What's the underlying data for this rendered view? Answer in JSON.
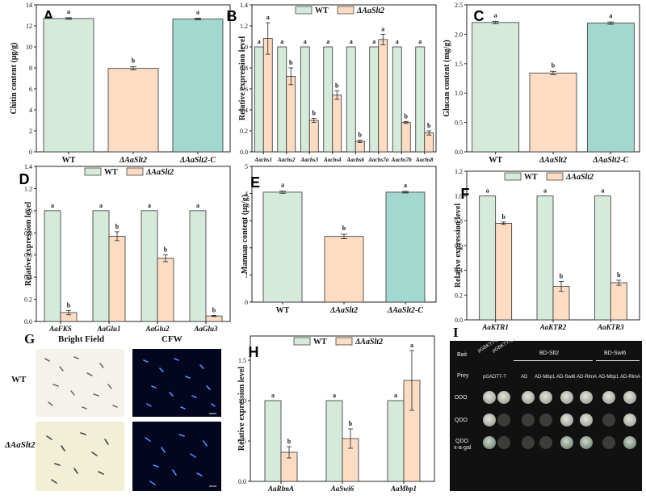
{
  "colors": {
    "wt": "#d6eadc",
    "mutant": "#fddcc4",
    "complement": "#a3d8cf",
    "stroke": "#333333"
  },
  "legend": {
    "wt": "WT",
    "mutant": "ΔAaSlt2"
  },
  "chart_data": [
    {
      "panel": "A",
      "type": "bar",
      "ylabel": "Chitin content (μg/g)",
      "ylim": [
        0,
        14
      ],
      "yticks": [
        0,
        2,
        4,
        6,
        8,
        10,
        12,
        14
      ],
      "categories": [
        "WT",
        "ΔAaSlt2",
        "ΔAaSlt2-C"
      ],
      "values": [
        12.7,
        7.95,
        12.65
      ],
      "errors": [
        0.08,
        0.15,
        0.08
      ],
      "labels": [
        "a",
        "b",
        "a"
      ],
      "legend": false
    },
    {
      "panel": "B",
      "type": "bar",
      "ylabel": "Relative expression level",
      "ylim": [
        0,
        1.4
      ],
      "yticks": [
        0.0,
        0.2,
        0.4,
        0.6,
        0.8,
        1.0,
        1.2,
        1.4
      ],
      "categories": [
        "Aachs1",
        "Aachs2",
        "Aachs3",
        "Aachs4",
        "Aachs6",
        "Aachs7a",
        "Aachs7b",
        "Aachs8"
      ],
      "series": [
        {
          "name": "WT",
          "values": [
            1,
            1,
            1,
            1,
            1,
            1,
            1,
            1
          ],
          "errors": [
            0,
            0,
            0,
            0,
            0,
            0,
            0,
            0
          ],
          "labels": [
            "a",
            "a",
            "a",
            "a",
            "a",
            "a",
            "a",
            "a"
          ]
        },
        {
          "name": "ΔAaSlt2",
          "values": [
            1.08,
            0.72,
            0.3,
            0.54,
            0.1,
            1.07,
            0.28,
            0.18
          ],
          "errors": [
            0.15,
            0.08,
            0.02,
            0.04,
            0.01,
            0.05,
            0.01,
            0.02
          ],
          "labels": [
            "a",
            "b",
            "b",
            "b",
            "b",
            "a",
            "b",
            "b"
          ]
        }
      ],
      "legend": true
    },
    {
      "panel": "C",
      "type": "bar",
      "ylabel": "Glucan content (mg/g)",
      "ylim": [
        0,
        2.5
      ],
      "yticks": [
        0.0,
        0.5,
        1.0,
        1.5,
        2.0,
        2.5
      ],
      "categories": [
        "WT",
        "ΔAaSlt2",
        "ΔAaSlt2-C"
      ],
      "values": [
        2.2,
        1.34,
        2.19
      ],
      "errors": [
        0.02,
        0.03,
        0.02
      ],
      "labels": [
        "a",
        "b",
        "a"
      ],
      "legend": false
    },
    {
      "panel": "D",
      "type": "bar",
      "ylabel": "Relative expression level",
      "ylim": [
        0,
        1.4
      ],
      "yticks": [
        0.0,
        0.2,
        0.4,
        0.6,
        0.8,
        1.0,
        1.2,
        1.4
      ],
      "categories": [
        "AaFKS",
        "AaGlu1",
        "AaGlu2",
        "AaGlu3"
      ],
      "series": [
        {
          "name": "WT",
          "values": [
            1,
            1,
            1,
            1
          ],
          "errors": [
            0,
            0,
            0,
            0
          ],
          "labels": [
            "a",
            "a",
            "a",
            "a"
          ]
        },
        {
          "name": "ΔAaSlt2",
          "values": [
            0.08,
            0.77,
            0.57,
            0.05
          ],
          "errors": [
            0.02,
            0.04,
            0.03,
            0.005
          ],
          "labels": [
            "b",
            "b",
            "b",
            "b"
          ]
        }
      ],
      "legend": true
    },
    {
      "panel": "E",
      "type": "bar",
      "ylabel": "Mannan content (μg/g)",
      "ylim": [
        0,
        5
      ],
      "yticks": [
        0,
        1,
        2,
        3,
        4,
        5
      ],
      "categories": [
        "WT",
        "ΔAaSlt2",
        "ΔAaSlt2-C"
      ],
      "values": [
        4.05,
        2.42,
        4.05
      ],
      "errors": [
        0.04,
        0.08,
        0.03
      ],
      "labels": [
        "a",
        "b",
        "a"
      ],
      "legend": false
    },
    {
      "panel": "F",
      "type": "bar",
      "ylabel": "Relative expression level",
      "ylim": [
        0,
        1.2
      ],
      "yticks": [
        0.0,
        0.2,
        0.4,
        0.6,
        0.8,
        1.0,
        1.2
      ],
      "categories": [
        "AaKTR1",
        "AaKTR2",
        "AaKTR3"
      ],
      "series": [
        {
          "name": "WT",
          "values": [
            1,
            1,
            1
          ],
          "errors": [
            0,
            0,
            0
          ],
          "labels": [
            "a",
            "a",
            "a"
          ]
        },
        {
          "name": "ΔAaSlt2",
          "values": [
            0.78,
            0.27,
            0.3
          ],
          "errors": [
            0.01,
            0.04,
            0.02
          ],
          "labels": [
            "b",
            "b",
            "b"
          ]
        }
      ],
      "legend": true
    },
    {
      "panel": "H",
      "type": "bar",
      "ylabel": "Relative expression level",
      "ylim": [
        0,
        1.8
      ],
      "yticks": [
        0.0,
        0.5,
        1.0,
        1.5
      ],
      "categories": [
        "AaRlmA",
        "AaSwi6",
        "AaMbp1"
      ],
      "series": [
        {
          "name": "WT",
          "values": [
            1,
            1,
            1
          ],
          "errors": [
            0,
            0,
            0
          ],
          "labels": [
            "a",
            "a",
            "a"
          ]
        },
        {
          "name": "ΔAaSlt2",
          "values": [
            0.36,
            0.53,
            1.25
          ],
          "errors": [
            0.07,
            0.12,
            0.37
          ],
          "labels": [
            "b",
            "b",
            "a"
          ]
        }
      ],
      "legend": true
    }
  ],
  "panel_g": {
    "label": "G",
    "col_titles": [
      "Bright Field",
      "CFW"
    ],
    "row_labels": [
      "WT",
      "ΔAaSlt2"
    ]
  },
  "panel_i": {
    "label": "I",
    "bait_label": "Bait",
    "prey_label": "Prey",
    "controls": [
      "pGBKT7-53",
      "pGBKT7-Lam"
    ],
    "bait_groups": [
      "BD-Slt2",
      "BD-Swi6"
    ],
    "prey_items": [
      "pGADT7-T",
      "AD",
      "AD-Mbp1",
      "AD-Swi6",
      "AD-RlmA",
      "AD-Mbp1",
      "AD-RlmA"
    ],
    "media": [
      "DDO",
      "QDO",
      "QDO",
      "x-a-gal"
    ]
  }
}
